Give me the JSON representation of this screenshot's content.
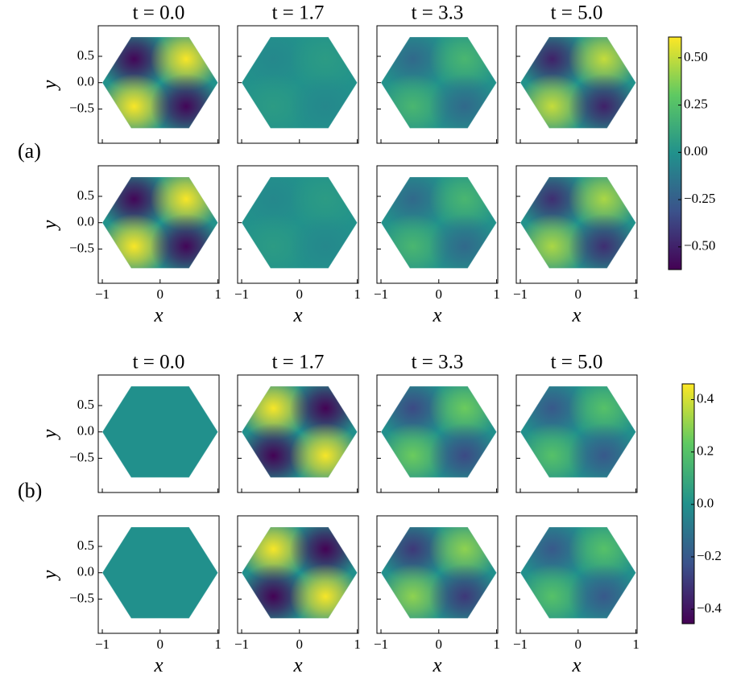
{
  "chart_data": [
    {
      "type": "heatmap",
      "label": "(a)",
      "colormap": "viridis",
      "titles": [
        "t = 0.0",
        "t = 1.7",
        "t = 3.3",
        "t = 5.0"
      ],
      "peak_values": [
        [
          0.6,
          0.05,
          0.2,
          0.5
        ],
        [
          0.6,
          0.05,
          0.2,
          0.45
        ]
      ],
      "xlabel": "x",
      "ylabel": "y",
      "xlim": [
        -1.07,
        1.02
      ],
      "ylim": [
        -1.15,
        1.08
      ],
      "xticks": [
        {
          "value": -1,
          "label": "−1"
        },
        0,
        1
      ],
      "yticks": [
        {
          "value": -0.5,
          "label": "−0.5"
        },
        {
          "value": 0,
          "label": "0.0"
        },
        0.5
      ],
      "clim": [
        -0.62,
        0.61
      ],
      "cticks": [
        {
          "value": -0.5,
          "label": "−0.50"
        },
        {
          "value": -0.25,
          "label": "−0.25"
        },
        {
          "value": 0,
          "label": "0.00"
        },
        {
          "value": 0.25,
          "label": "0.25"
        },
        {
          "value": 0.5,
          "label": "0.50"
        }
      ]
    },
    {
      "type": "heatmap",
      "label": "(b)",
      "colormap": "viridis",
      "titles": [
        "t = 0.0",
        "t = 1.7",
        "t = 3.3",
        "t = 5.0"
      ],
      "peak_values": [
        [
          0,
          -0.45,
          0.25,
          0.2
        ],
        [
          0,
          -0.45,
          0.3,
          0.2
        ]
      ],
      "xlabel": "x",
      "ylabel": "y",
      "xlim": [
        -1.07,
        1.02
      ],
      "ylim": [
        -1.15,
        1.08
      ],
      "xticks": [
        {
          "value": -1,
          "label": "−1"
        },
        0,
        1
      ],
      "yticks": [
        {
          "value": -0.5,
          "label": "−0.5"
        },
        {
          "value": 0,
          "label": "0.0"
        },
        0.5
      ],
      "clim": [
        -0.455,
        0.46
      ],
      "cticks": [
        {
          "value": -0.4,
          "label": "−0.4"
        },
        {
          "value": -0.2,
          "label": "−0.2"
        },
        {
          "value": 0,
          "label": "0.0"
        },
        0.2,
        0.4
      ]
    }
  ]
}
